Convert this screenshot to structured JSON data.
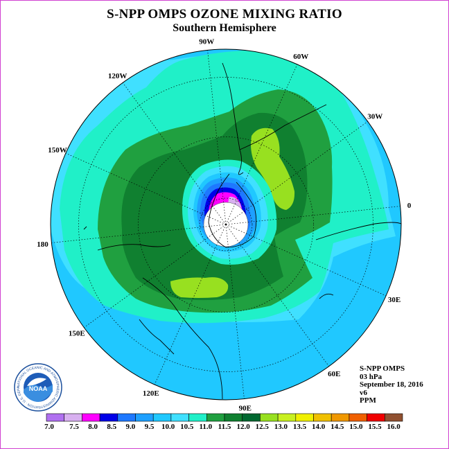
{
  "title": "S-NPP OMPS OZONE MIXING RATIO",
  "subtitle": "Southern Hemisphere",
  "longitude_labels": [
    "90W",
    "60W",
    "30W",
    "0",
    "30E",
    "60E",
    "90E",
    "120E",
    "150E",
    "180",
    "150W",
    "120W"
  ],
  "info": {
    "instrument": "S-NPP OMPS",
    "level": "03 hPa",
    "date": "September 18, 2016",
    "version": "v6",
    "units": "PPM"
  },
  "logo": {
    "text": "NOAA",
    "ring_text": "NATIONAL OCEANIC AND ATMOSPHERIC ADMINISTRATION · U.S. DEPARTMENT OF COMMERCE"
  },
  "colorbar": {
    "ticks": [
      "7.0",
      "7.5",
      "8.0",
      "8.5",
      "9.0",
      "9.5",
      "10.0",
      "10.5",
      "11.0",
      "11.5",
      "12.0",
      "12.5",
      "13.0",
      "13.5",
      "14.0",
      "14.5",
      "15.0",
      "15.5",
      "16.0"
    ],
    "colors": [
      "#b070f0",
      "#d8b0f0",
      "#ff00ff",
      "#0000e8",
      "#1e78ff",
      "#1ea0ff",
      "#20c8ff",
      "#40e0ff",
      "#20f0c8",
      "#20a040",
      "#108030",
      "#006830",
      "#98e020",
      "#c8f020",
      "#f0f000",
      "#f0c000",
      "#f09800",
      "#f06000",
      "#f00000",
      "#905030"
    ]
  },
  "field_colors": {
    "outer": "#20c8ff",
    "band_10_5": "#40e0ff",
    "band_11": "#20f0c8",
    "band_11_5": "#20a040",
    "band_12": "#108030",
    "band_12_5": "#98e020",
    "vortex_9_5": "#1ea0ff",
    "vortex_9": "#1e78ff",
    "vortex_8_5": "#0000e8",
    "vortex_8": "#ff00ff",
    "vortex_7_5": "#d8b0f0",
    "no_data": "#ffffff"
  }
}
